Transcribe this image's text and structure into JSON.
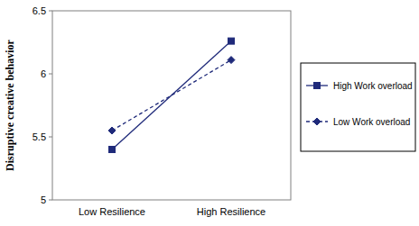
{
  "chart_data": {
    "type": "line",
    "y_label": "Disruptive creative behavior",
    "categories": [
      "Low Resilience",
      "High Resilience"
    ],
    "series": [
      {
        "name": "High Work overload",
        "color": "#1f2a7a",
        "marker": "square",
        "line_style": "solid",
        "values": [
          5.4,
          6.26
        ]
      },
      {
        "name": "Low Work overload",
        "color": "#1f2a7a",
        "marker": "diamond",
        "line_style": "dashed",
        "values": [
          5.55,
          6.11
        ]
      }
    ],
    "ylim": [
      5,
      6.5
    ],
    "yticks": [
      5,
      5.5,
      6,
      6.5
    ],
    "grid": false,
    "legend": "right"
  }
}
